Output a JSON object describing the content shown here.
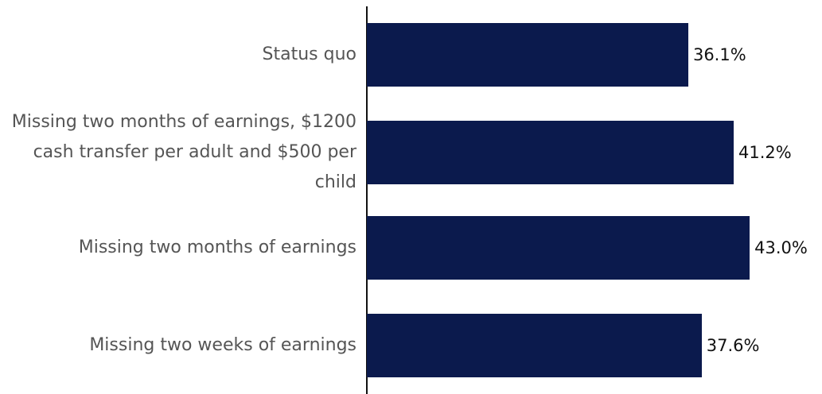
{
  "chart_data": {
    "type": "bar",
    "orientation": "horizontal",
    "categories": [
      "Status quo",
      "Missing two months of earnings, $1200 cash transfer per adult and $500 per child",
      "Missing two months of earnings",
      "Missing two weeks of earnings"
    ],
    "values": [
      36.1,
      41.2,
      43.0,
      37.6
    ],
    "value_labels": [
      "36.1%",
      "41.2%",
      "43.0%",
      "37.6%"
    ],
    "color": "#0b1a4d"
  }
}
